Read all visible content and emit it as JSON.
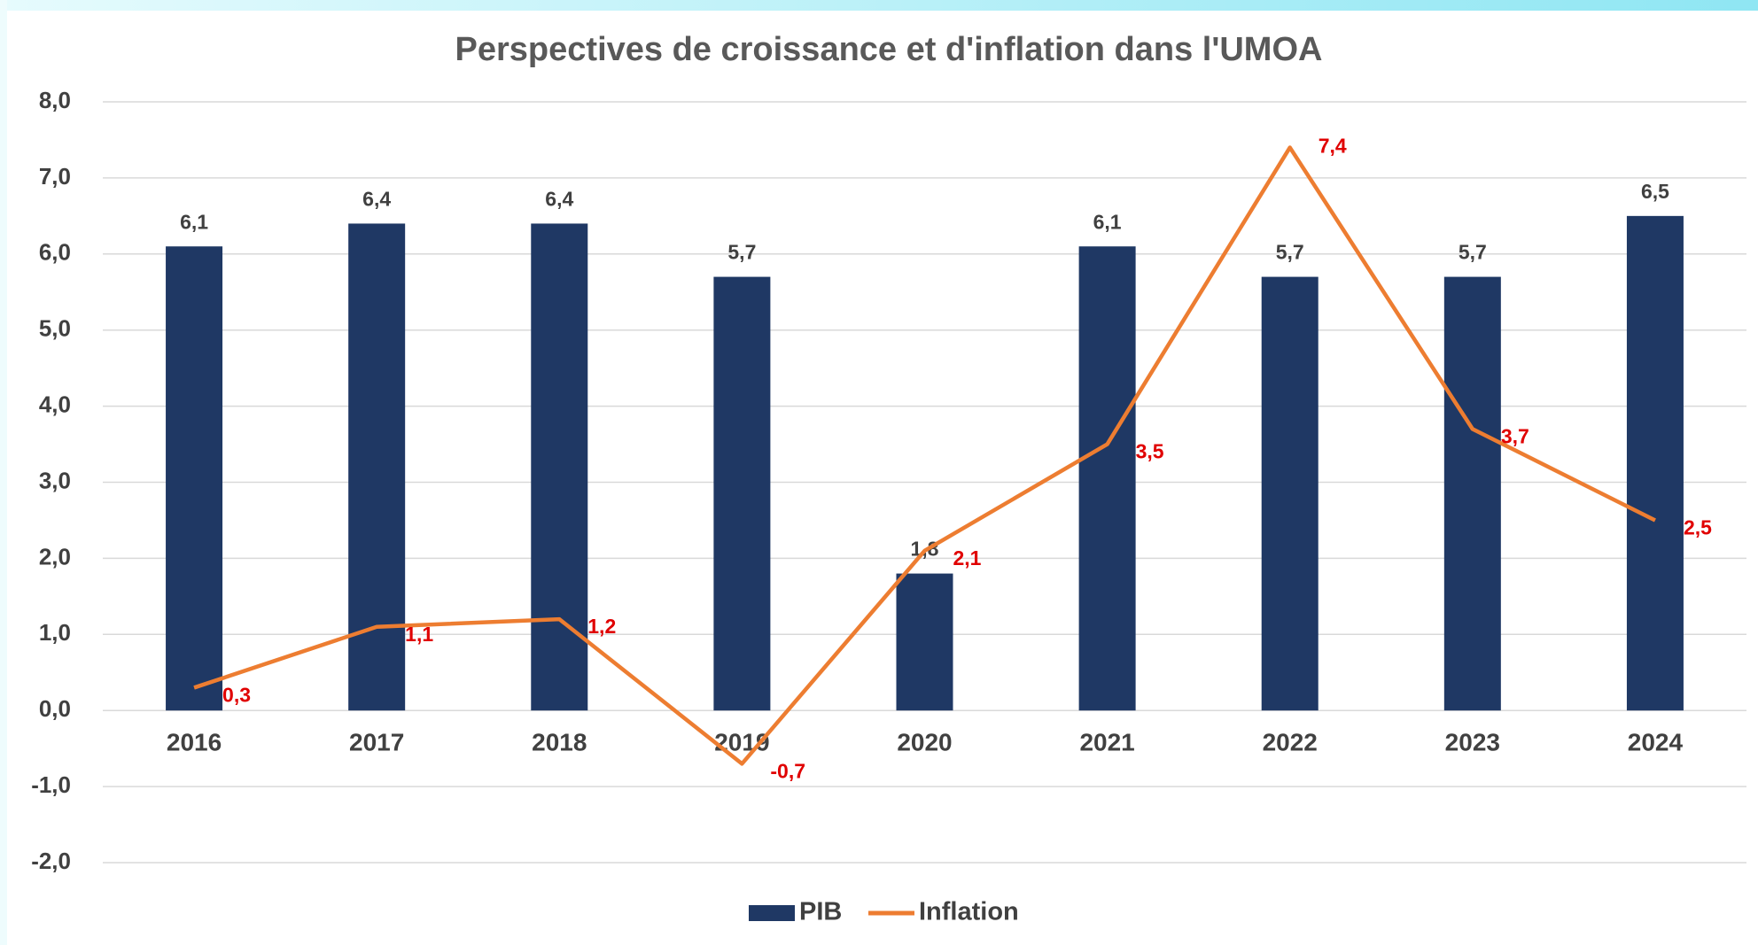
{
  "chart_data": {
    "type": "bar+line",
    "title": "Perspectives de croissance et d'inflation dans l'UMOA",
    "categories": [
      "2016",
      "2017",
      "2018",
      "2019",
      "2020",
      "2021",
      "2022",
      "2023",
      "2024"
    ],
    "series": [
      {
        "name": "PIB",
        "type": "bar",
        "color": "#1f3864",
        "values": [
          6.1,
          6.4,
          6.4,
          5.7,
          1.8,
          6.1,
          5.7,
          5.7,
          6.5
        ],
        "value_labels": [
          "6,1",
          "6,4",
          "6,4",
          "5,7",
          "1,8",
          "6,1",
          "5,7",
          "5,7",
          "6,5"
        ]
      },
      {
        "name": "Inflation",
        "type": "line",
        "color": "#ed7d31",
        "values": [
          0.3,
          1.1,
          1.2,
          -0.7,
          2.1,
          3.5,
          7.4,
          3.7,
          2.5
        ],
        "value_labels": [
          "0,3",
          "1,1",
          "1,2",
          "-0,7",
          "2,1",
          "3,5",
          "7,4",
          "3,7",
          "2,5"
        ]
      }
    ],
    "ylim": [
      -2,
      8
    ],
    "yticks": [
      {
        "value": -2,
        "label": "-2,0"
      },
      {
        "value": -1,
        "label": "-1,0"
      },
      {
        "value": 0,
        "label": "0,0"
      },
      {
        "value": 1,
        "label": "1,0"
      },
      {
        "value": 2,
        "label": "2,0"
      },
      {
        "value": 3,
        "label": "3,0"
      },
      {
        "value": 4,
        "label": "4,0"
      },
      {
        "value": 5,
        "label": "5,0"
      },
      {
        "value": 6,
        "label": "6,0"
      },
      {
        "value": 7,
        "label": "7,0"
      },
      {
        "value": 8,
        "label": "8,0"
      }
    ],
    "grid": true,
    "legend": "bottom"
  }
}
